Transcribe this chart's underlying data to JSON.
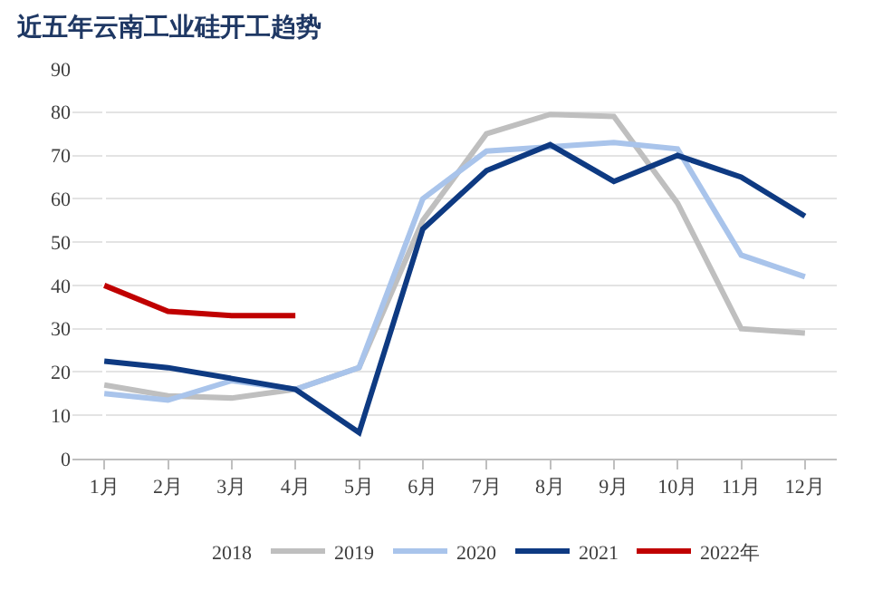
{
  "chart_data": {
    "type": "line",
    "title": "近五年云南工业硅开工趋势",
    "categories": [
      "1月",
      "2月",
      "3月",
      "4月",
      "5月",
      "6月",
      "7月",
      "8月",
      "9月",
      "10月",
      "11月",
      "12月"
    ],
    "series": [
      {
        "name": "2018",
        "values": [
          null,
          null,
          null,
          null,
          null,
          null,
          null,
          null,
          null,
          null,
          null,
          null
        ]
      },
      {
        "name": "2019",
        "color": "#bfbfbf",
        "values": [
          17,
          14.5,
          14,
          16,
          21,
          55,
          75,
          79.5,
          79,
          59,
          30,
          29
        ]
      },
      {
        "name": "2020",
        "color": "#a9c4eb",
        "values": [
          15,
          13.5,
          18,
          16,
          21,
          60,
          71,
          72,
          73,
          71.5,
          47,
          42
        ]
      },
      {
        "name": "2021",
        "color": "#0e3a82",
        "values": [
          22.5,
          21,
          18.5,
          16,
          6,
          53,
          66.5,
          72.5,
          64,
          70,
          65,
          56
        ]
      },
      {
        "name": "2022年",
        "color": "#c00000",
        "values": [
          40,
          34,
          33,
          33,
          null,
          null,
          null,
          null,
          null,
          null,
          null,
          null
        ]
      }
    ],
    "ylim": [
      0,
      90
    ],
    "yticks": [
      0,
      10,
      20,
      30,
      40,
      50,
      60,
      70,
      80,
      90
    ],
    "grid": "y",
    "legend": "bottom",
    "marker": "none",
    "line_style": "solid"
  }
}
